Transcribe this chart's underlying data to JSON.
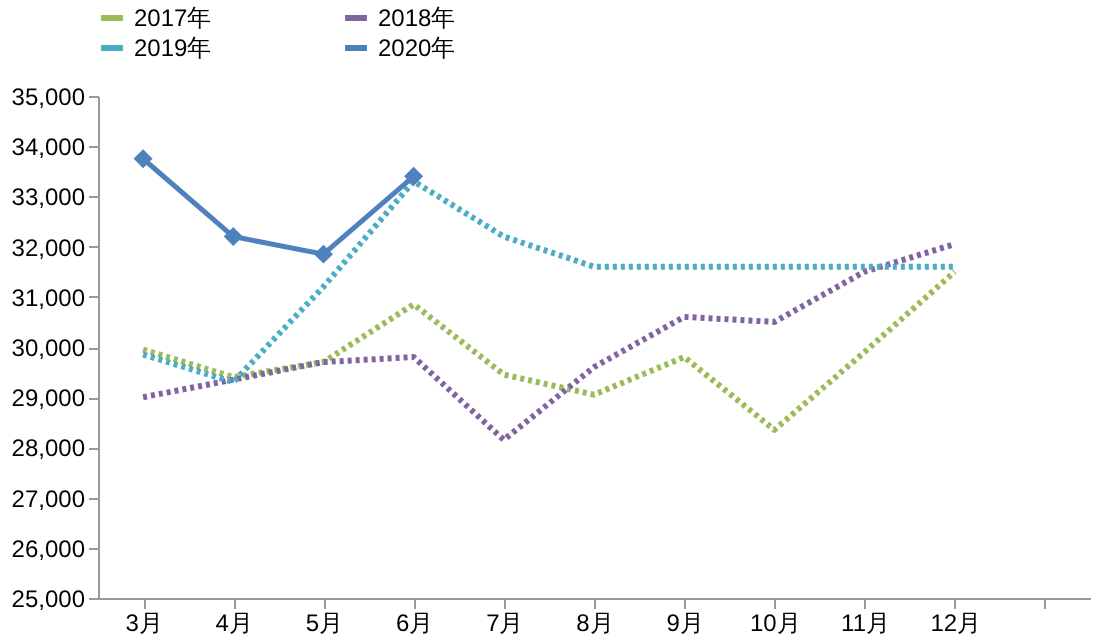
{
  "chart_data": {
    "type": "line",
    "categories": [
      "3月",
      "4月",
      "5月",
      "6月",
      "7月",
      "8月",
      "9月",
      "10月",
      "11月",
      "12月",
      null
    ],
    "series": [
      {
        "name": "2017年",
        "color": "#9bbb59",
        "line_style": "dotted",
        "marker": "none",
        "values": [
          29950,
          29400,
          29700,
          30850,
          29450,
          29050,
          29800,
          28350,
          29900,
          31500,
          null
        ]
      },
      {
        "name": "2018年",
        "color": "#8064a2",
        "line_style": "dotted",
        "marker": "none",
        "values": [
          29000,
          29350,
          29700,
          29800,
          28150,
          29600,
          30600,
          30500,
          31500,
          32050,
          null
        ]
      },
      {
        "name": "2019年",
        "color": "#4bacc6",
        "line_style": "dotted",
        "marker": "none",
        "values": [
          29850,
          29300,
          31200,
          33300,
          32200,
          31600,
          31600,
          31600,
          31600,
          31600,
          null
        ]
      },
      {
        "name": "2020年",
        "color": "#4f81bd",
        "line_style": "solid",
        "marker": "diamond",
        "values": [
          33750,
          32200,
          31850,
          33400,
          null,
          null,
          null,
          null,
          null,
          null,
          null
        ]
      }
    ],
    "ylim": [
      25000,
      35000
    ],
    "yticks": [
      {
        "value": 25000,
        "label": "25,000"
      },
      {
        "value": 26000,
        "label": "26,000"
      },
      {
        "value": 27000,
        "label": "27,000"
      },
      {
        "value": 28000,
        "label": "28,000"
      },
      {
        "value": 29000,
        "label": "29,000"
      },
      {
        "value": 30000,
        "label": "30,000"
      },
      {
        "value": 31000,
        "label": "31,000"
      },
      {
        "value": 32000,
        "label": "32,000"
      },
      {
        "value": 33000,
        "label": "33,000"
      },
      {
        "value": 34000,
        "label": "34,000"
      },
      {
        "value": 35000,
        "label": "35,000"
      }
    ],
    "grid": false,
    "legend": "top"
  }
}
